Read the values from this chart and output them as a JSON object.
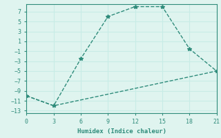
{
  "title": "",
  "xlabel": "Humidex (Indice chaleur)",
  "line1_x": [
    0,
    3,
    6,
    9,
    12,
    15,
    18,
    21
  ],
  "line1_y": [
    -10,
    -12,
    -2.5,
    6,
    8,
    8,
    -0.5,
    -5
  ],
  "line2_x": [
    0,
    3,
    21
  ],
  "line2_y": [
    -10,
    -12,
    -5
  ],
  "xlim": [
    0,
    21
  ],
  "ylim": [
    -13.5,
    8.5
  ],
  "xticks": [
    0,
    3,
    6,
    9,
    12,
    15,
    18,
    21
  ],
  "yticks": [
    -13,
    -11,
    -9,
    -7,
    -5,
    -3,
    -1,
    1,
    3,
    5,
    7
  ],
  "line_color": "#2e8b7a",
  "bg_color": "#dff4ef",
  "grid_color": "#c8ece6",
  "marker": "*",
  "marker_size": 4,
  "linewidth": 1.0
}
